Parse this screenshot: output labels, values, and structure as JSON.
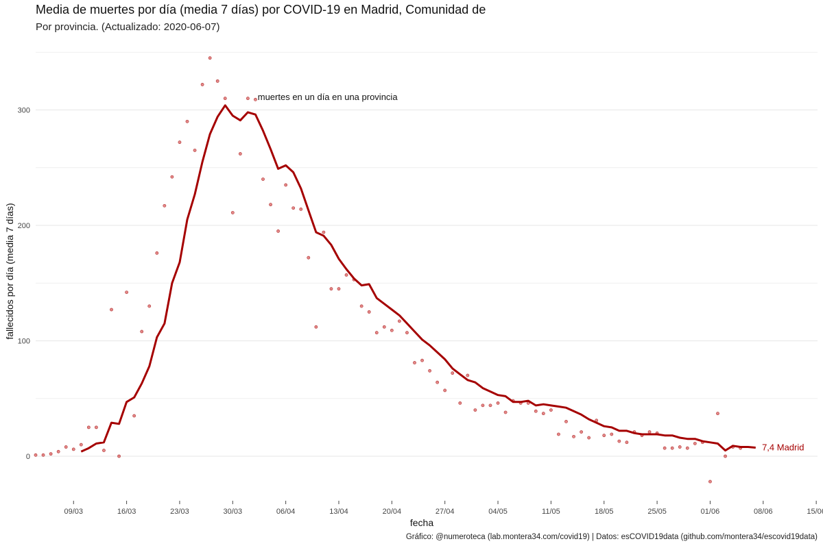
{
  "header": {
    "title": "Media de muertes por día (media 7 días) por COVID-19 en Madrid, Comunidad de",
    "subtitle": "Por provincia. (Actualizado: 2020-06-07)"
  },
  "caption": "Gráfico: @numeroteca (lab.montera34.com/covid19) | Datos: esCOVID19data (github.com/montera34/escovid19data)",
  "chart_data": {
    "type": "line",
    "xlabel": "fecha",
    "ylabel": "fallecidos por día (media 7 días)",
    "x_start": "2020-03-04",
    "x_end": "2020-06-15",
    "ylim": [
      -40,
      352
    ],
    "y_ticks": [
      0,
      100,
      200,
      300
    ],
    "y_tick_labels": [
      "0",
      "100",
      "200",
      "300"
    ],
    "x_ticks": [
      {
        "day": 5,
        "label": "09/03"
      },
      {
        "day": 12,
        "label": "16/03"
      },
      {
        "day": 19,
        "label": "23/03"
      },
      {
        "day": 26,
        "label": "30/03"
      },
      {
        "day": 33,
        "label": "06/04"
      },
      {
        "day": 40,
        "label": "13/04"
      },
      {
        "day": 47,
        "label": "20/04"
      },
      {
        "day": 54,
        "label": "27/04"
      },
      {
        "day": 61,
        "label": "04/05"
      },
      {
        "day": 68,
        "label": "11/05"
      },
      {
        "day": 75,
        "label": "18/05"
      },
      {
        "day": 82,
        "label": "25/05"
      },
      {
        "day": 89,
        "label": "01/06"
      },
      {
        "day": 96,
        "label": "08/06"
      },
      {
        "day": 103,
        "label": "15/06"
      }
    ],
    "grid": true,
    "colors": {
      "line": "#a50000",
      "points": "#d96060",
      "points_stroke": "#b03030",
      "grid": "#ebebeb"
    },
    "annotation": {
      "text": "muertes en un día en una provincia",
      "day": 29.3,
      "value": 311
    },
    "end_label": {
      "text": "7,4 Madrid",
      "day": 95.3,
      "value": 7.4
    },
    "series": [
      {
        "name": "media 7 días",
        "kind": "line",
        "points": [
          [
            6,
            4
          ],
          [
            7,
            7
          ],
          [
            8,
            11
          ],
          [
            9,
            12
          ],
          [
            10,
            29
          ],
          [
            11,
            28
          ],
          [
            12,
            47
          ],
          [
            13,
            51
          ],
          [
            14,
            63
          ],
          [
            15,
            78
          ],
          [
            16,
            103
          ],
          [
            17,
            115
          ],
          [
            18,
            150
          ],
          [
            19,
            168
          ],
          [
            20,
            205
          ],
          [
            21,
            227
          ],
          [
            22,
            255
          ],
          [
            23,
            279
          ],
          [
            24,
            294
          ],
          [
            25,
            304
          ],
          [
            26,
            295
          ],
          [
            27,
            291
          ],
          [
            28,
            298
          ],
          [
            29,
            296
          ],
          [
            30,
            282
          ],
          [
            31,
            266
          ],
          [
            32,
            249
          ],
          [
            33,
            252
          ],
          [
            34,
            246
          ],
          [
            35,
            232
          ],
          [
            36,
            213
          ],
          [
            37,
            194
          ],
          [
            38,
            191
          ],
          [
            39,
            183
          ],
          [
            40,
            171
          ],
          [
            41,
            162
          ],
          [
            42,
            154
          ],
          [
            43,
            148
          ],
          [
            44,
            149
          ],
          [
            45,
            137
          ],
          [
            46,
            132
          ],
          [
            47,
            127
          ],
          [
            48,
            122
          ],
          [
            49,
            115
          ],
          [
            50,
            108
          ],
          [
            51,
            101
          ],
          [
            52,
            96
          ],
          [
            53,
            90
          ],
          [
            54,
            84
          ],
          [
            55,
            76
          ],
          [
            56,
            71
          ],
          [
            57,
            66
          ],
          [
            58,
            64
          ],
          [
            59,
            59
          ],
          [
            60,
            56
          ],
          [
            61,
            53
          ],
          [
            62,
            52
          ],
          [
            63,
            47
          ],
          [
            64,
            47
          ],
          [
            65,
            48
          ],
          [
            66,
            44
          ],
          [
            67,
            45
          ],
          [
            68,
            44
          ],
          [
            69,
            43
          ],
          [
            70,
            42
          ],
          [
            71,
            39
          ],
          [
            72,
            36
          ],
          [
            73,
            32
          ],
          [
            74,
            29
          ],
          [
            75,
            26
          ],
          [
            76,
            25
          ],
          [
            77,
            22
          ],
          [
            78,
            22
          ],
          [
            79,
            20
          ],
          [
            80,
            19
          ],
          [
            81,
            19
          ],
          [
            82,
            19
          ],
          [
            83,
            18
          ],
          [
            84,
            18
          ],
          [
            85,
            16
          ],
          [
            86,
            15
          ],
          [
            87,
            15
          ],
          [
            88,
            13
          ],
          [
            89,
            12
          ],
          [
            90,
            11
          ],
          [
            91,
            5
          ],
          [
            92,
            9
          ],
          [
            93,
            8
          ],
          [
            94,
            8
          ],
          [
            95,
            7.4
          ]
        ]
      },
      {
        "name": "muertes en un día en una provincia",
        "kind": "scatter",
        "points": [
          [
            0,
            1
          ],
          [
            1,
            1
          ],
          [
            2,
            2
          ],
          [
            3,
            4
          ],
          [
            4,
            8
          ],
          [
            5,
            6
          ],
          [
            6,
            10
          ],
          [
            7,
            25
          ],
          [
            8,
            25
          ],
          [
            9,
            5
          ],
          [
            10,
            127
          ],
          [
            11,
            0
          ],
          [
            12,
            142
          ],
          [
            13,
            35
          ],
          [
            14,
            108
          ],
          [
            15,
            130
          ],
          [
            16,
            176
          ],
          [
            17,
            217
          ],
          [
            18,
            242
          ],
          [
            19,
            272
          ],
          [
            20,
            290
          ],
          [
            21,
            265
          ],
          [
            22,
            322
          ],
          [
            23,
            345
          ],
          [
            24,
            325
          ],
          [
            25,
            310
          ],
          [
            26,
            211
          ],
          [
            27,
            262
          ],
          [
            28,
            310
          ],
          [
            29,
            309
          ],
          [
            30,
            240
          ],
          [
            31,
            218
          ],
          [
            32,
            195
          ],
          [
            33,
            235
          ],
          [
            34,
            215
          ],
          [
            35,
            214
          ],
          [
            36,
            172
          ],
          [
            37,
            112
          ],
          [
            38,
            194
          ],
          [
            39,
            145
          ],
          [
            40,
            145
          ],
          [
            41,
            157
          ],
          [
            42,
            153
          ],
          [
            43,
            130
          ],
          [
            44,
            125
          ],
          [
            45,
            107
          ],
          [
            46,
            112
          ],
          [
            47,
            109
          ],
          [
            48,
            117
          ],
          [
            49,
            107
          ],
          [
            50,
            81
          ],
          [
            51,
            83
          ],
          [
            52,
            74
          ],
          [
            53,
            64
          ],
          [
            54,
            57
          ],
          [
            55,
            72
          ],
          [
            56,
            46
          ],
          [
            57,
            70
          ],
          [
            58,
            40
          ],
          [
            59,
            44
          ],
          [
            60,
            44
          ],
          [
            61,
            46
          ],
          [
            62,
            38
          ],
          [
            63,
            48
          ],
          [
            64,
            46
          ],
          [
            65,
            46
          ],
          [
            66,
            39
          ],
          [
            67,
            37
          ],
          [
            68,
            40
          ],
          [
            69,
            19
          ],
          [
            70,
            30
          ],
          [
            71,
            17
          ],
          [
            72,
            21
          ],
          [
            73,
            16
          ],
          [
            74,
            31
          ],
          [
            75,
            18
          ],
          [
            76,
            19
          ],
          [
            77,
            13
          ],
          [
            78,
            12
          ],
          [
            79,
            21
          ],
          [
            80,
            18
          ],
          [
            81,
            21
          ],
          [
            82,
            20
          ],
          [
            83,
            7
          ],
          [
            84,
            7
          ],
          [
            85,
            8
          ],
          [
            86,
            7
          ],
          [
            87,
            11
          ],
          [
            88,
            12
          ],
          [
            89,
            -22
          ],
          [
            90,
            37
          ],
          [
            91,
            0
          ],
          [
            92,
            8
          ],
          [
            93,
            7
          ]
        ]
      }
    ]
  }
}
